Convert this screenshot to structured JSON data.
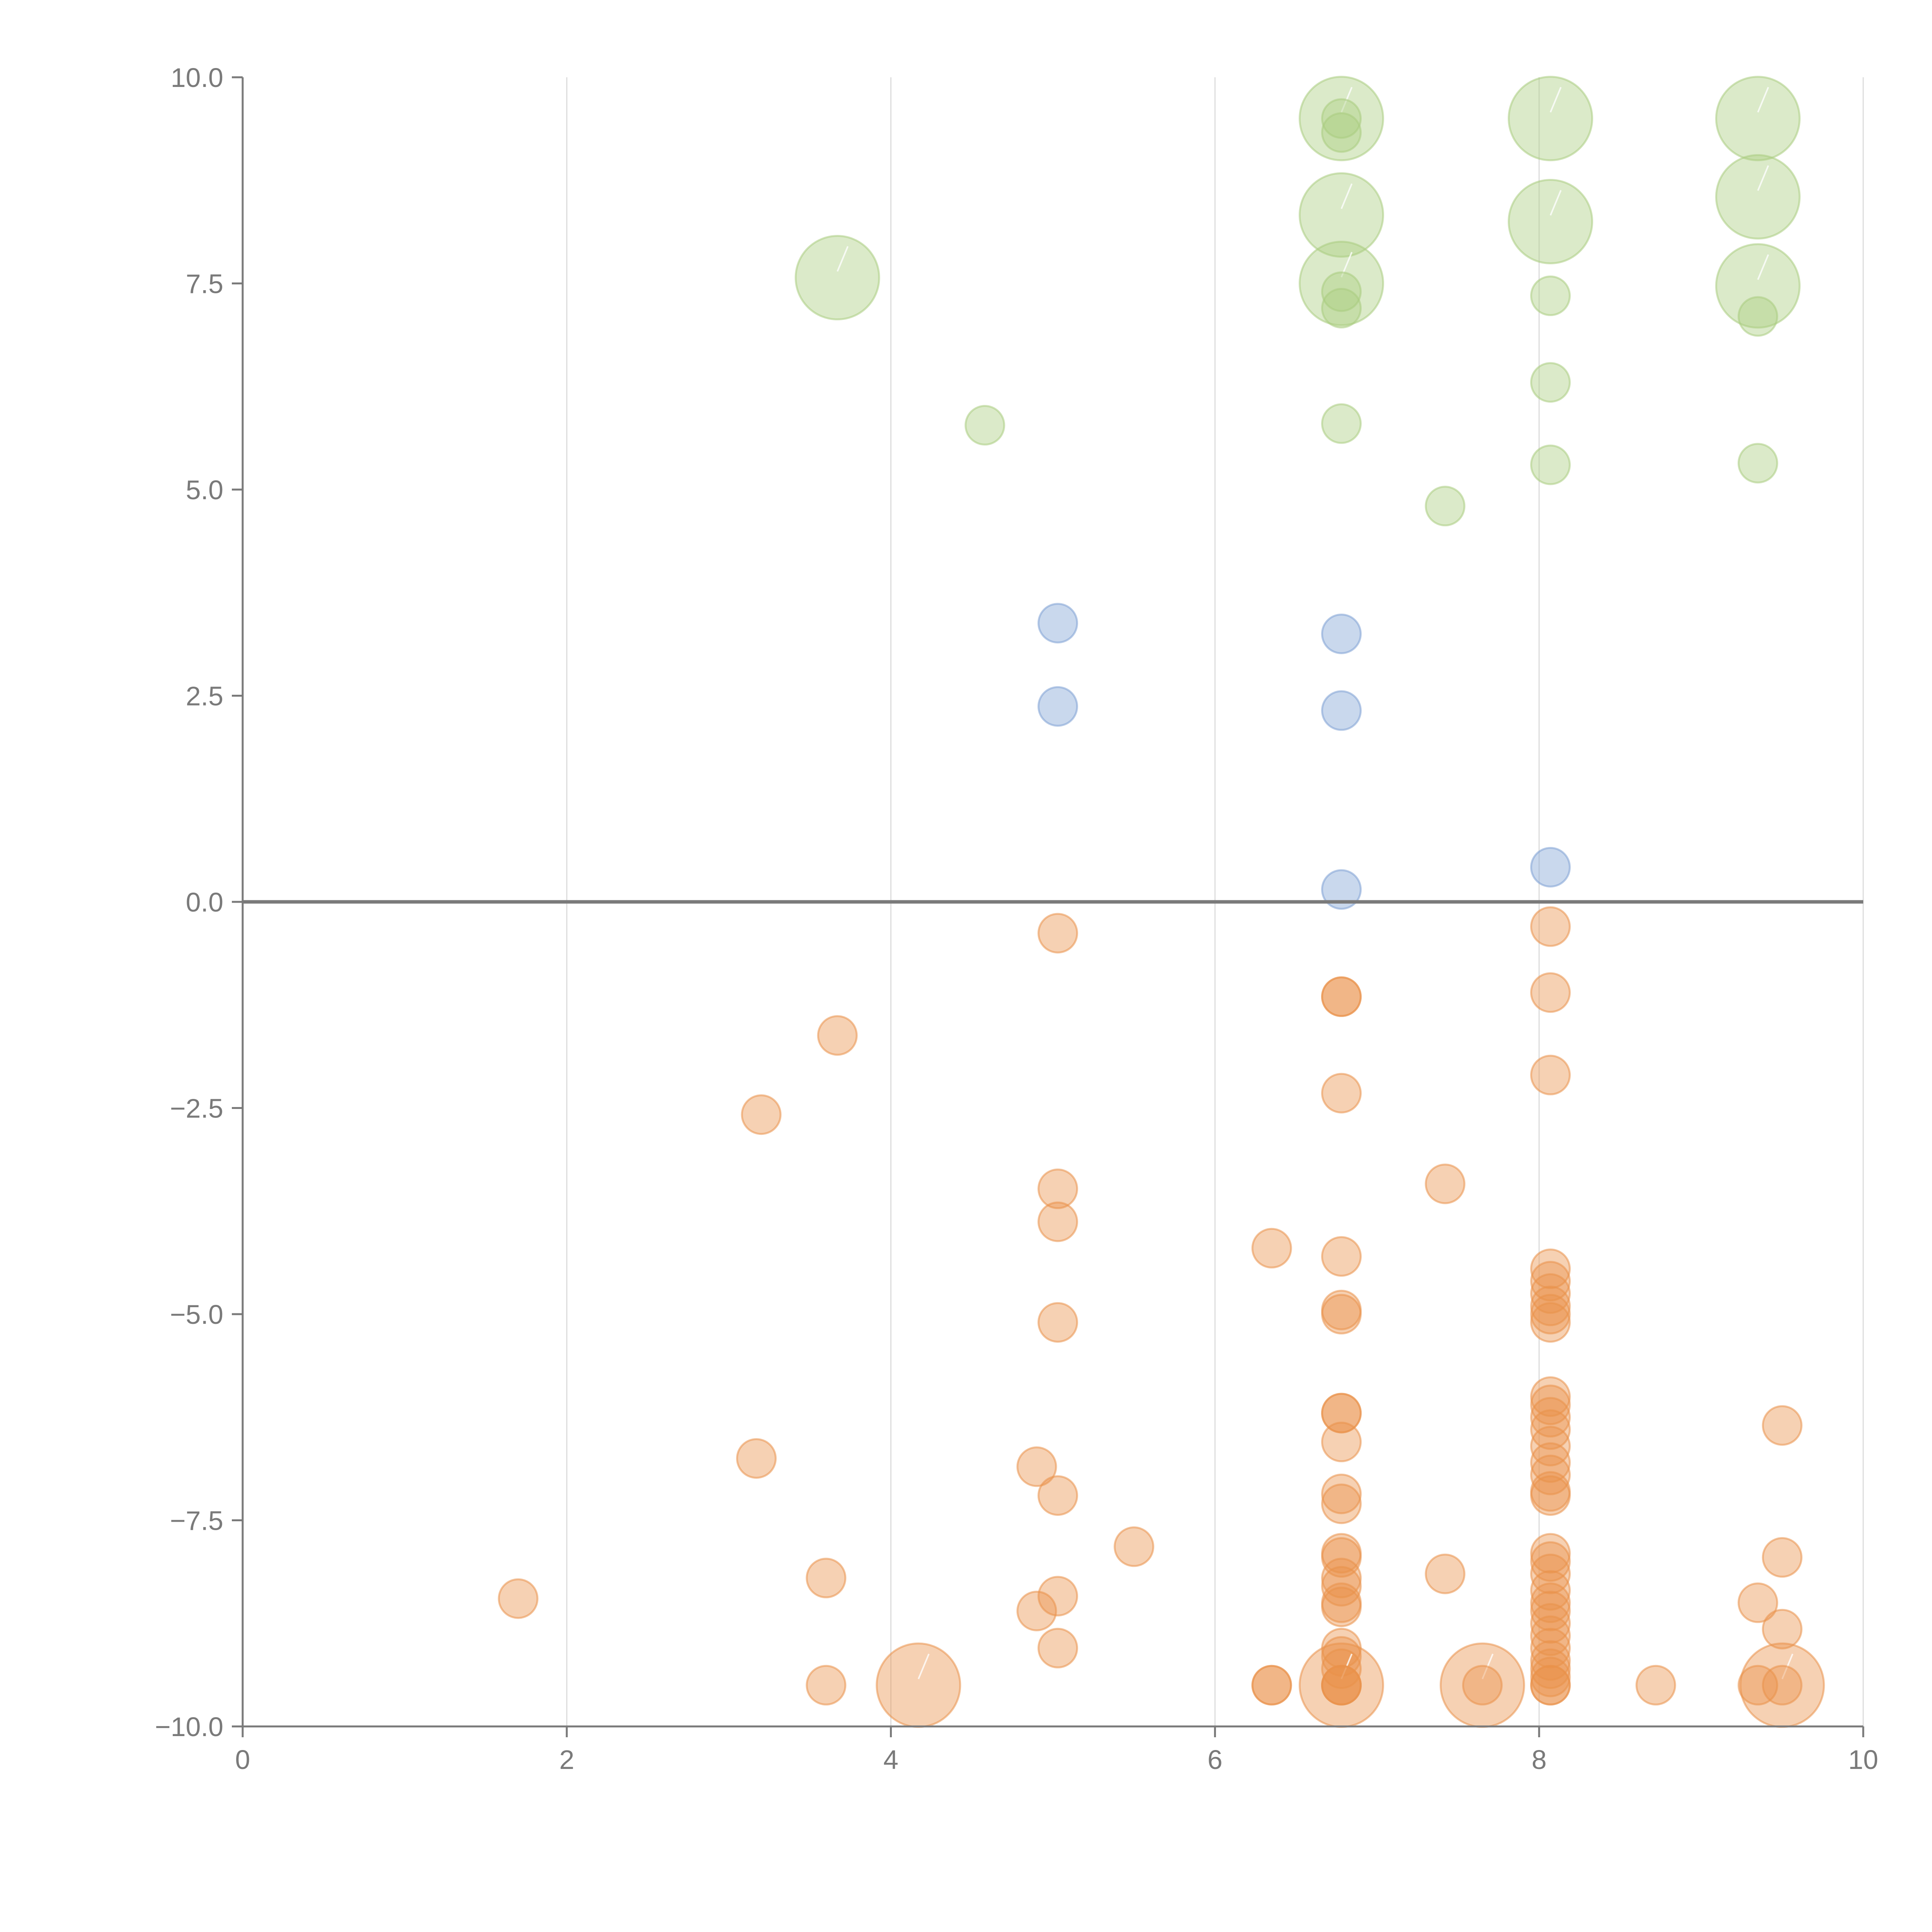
{
  "chart_data": {
    "type": "scatter",
    "title": "",
    "xlabel": "",
    "ylabel": "",
    "xlim": [
      0,
      10
    ],
    "ylim": [
      -10,
      10
    ],
    "grid": "vertical",
    "legend": "none",
    "x_ticks": [
      "0",
      "2",
      "4",
      "6",
      "8",
      "10"
    ],
    "y_ticks": [
      "10.0",
      "7.5",
      "5.0",
      "2.5",
      "0.0",
      "−2.5",
      "−5.0",
      "−7.5",
      "−10.0"
    ],
    "x_tick_values": [
      0,
      2,
      4,
      6,
      8,
      10
    ],
    "y_tick_values": [
      10,
      7.5,
      5,
      2.5,
      0,
      -2.5,
      -5,
      -7.5,
      -10
    ],
    "colors": {
      "green": "#a9cc7f",
      "blue": "#7ea1d4",
      "orange": "#e9924a",
      "axis": "#7a7a7a",
      "grid": "#dcdcdc"
    },
    "series": [
      {
        "color": "green",
        "points": [
          {
            "x": 3.67,
            "y": 7.57,
            "r": 2
          },
          {
            "x": 4.58,
            "y": 5.78,
            "r": 1
          },
          {
            "x": 6.78,
            "y": 9.5,
            "r": 2
          },
          {
            "x": 6.78,
            "y": 9.5,
            "r": 1
          },
          {
            "x": 6.78,
            "y": 9.33,
            "r": 1
          },
          {
            "x": 6.78,
            "y": 8.33,
            "r": 2
          },
          {
            "x": 6.78,
            "y": 7.5,
            "r": 2
          },
          {
            "x": 6.78,
            "y": 7.4,
            "r": 1
          },
          {
            "x": 6.78,
            "y": 7.2,
            "r": 1
          },
          {
            "x": 6.78,
            "y": 5.8,
            "r": 1
          },
          {
            "x": 7.42,
            "y": 4.8,
            "r": 1
          },
          {
            "x": 8.07,
            "y": 9.5,
            "r": 2
          },
          {
            "x": 8.07,
            "y": 8.25,
            "r": 2
          },
          {
            "x": 8.07,
            "y": 7.35,
            "r": 1
          },
          {
            "x": 8.07,
            "y": 6.3,
            "r": 1
          },
          {
            "x": 8.07,
            "y": 5.3,
            "r": 1
          },
          {
            "x": 9.35,
            "y": 9.5,
            "r": 2
          },
          {
            "x": 9.35,
            "y": 8.55,
            "r": 2
          },
          {
            "x": 9.35,
            "y": 7.47,
            "r": 2
          },
          {
            "x": 9.35,
            "y": 7.1,
            "r": 1
          },
          {
            "x": 9.35,
            "y": 5.32,
            "r": 1
          }
        ]
      },
      {
        "color": "blue",
        "points": [
          {
            "x": 5.03,
            "y": 3.38,
            "r": 1
          },
          {
            "x": 5.03,
            "y": 2.37,
            "r": 1
          },
          {
            "x": 6.78,
            "y": 3.25,
            "r": 1
          },
          {
            "x": 6.78,
            "y": 2.32,
            "r": 1
          },
          {
            "x": 6.78,
            "y": 0.15,
            "r": 1
          },
          {
            "x": 8.07,
            "y": 0.42,
            "r": 1
          }
        ]
      },
      {
        "color": "orange",
        "points": [
          {
            "x": 1.7,
            "y": -8.45,
            "r": 1
          },
          {
            "x": 3.17,
            "y": -6.75,
            "r": 1
          },
          {
            "x": 3.2,
            "y": -2.58,
            "r": 1
          },
          {
            "x": 3.6,
            "y": -8.2,
            "r": 1
          },
          {
            "x": 3.6,
            "y": -9.5,
            "r": 1
          },
          {
            "x": 3.67,
            "y": -1.62,
            "r": 1
          },
          {
            "x": 4.17,
            "y": -9.5,
            "r": 2
          },
          {
            "x": 4.9,
            "y": -6.85,
            "r": 1
          },
          {
            "x": 4.9,
            "y": -8.6,
            "r": 1
          },
          {
            "x": 5.03,
            "y": -0.38,
            "r": 1
          },
          {
            "x": 5.03,
            "y": -3.48,
            "r": 1
          },
          {
            "x": 5.03,
            "y": -3.88,
            "r": 1
          },
          {
            "x": 5.03,
            "y": -5.1,
            "r": 1
          },
          {
            "x": 5.03,
            "y": -7.2,
            "r": 1
          },
          {
            "x": 5.03,
            "y": -8.42,
            "r": 1
          },
          {
            "x": 5.03,
            "y": -9.05,
            "r": 1
          },
          {
            "x": 5.5,
            "y": -7.82,
            "r": 1
          },
          {
            "x": 6.35,
            "y": -4.2,
            "r": 1
          },
          {
            "x": 6.35,
            "y": -9.5,
            "r": 1
          },
          {
            "x": 6.35,
            "y": -9.5,
            "r": 1
          },
          {
            "x": 6.78,
            "y": -1.15,
            "r": 1
          },
          {
            "x": 6.78,
            "y": -1.15,
            "r": 1
          },
          {
            "x": 6.78,
            "y": -2.32,
            "r": 1
          },
          {
            "x": 6.78,
            "y": -4.3,
            "r": 1
          },
          {
            "x": 6.78,
            "y": -4.95,
            "r": 1
          },
          {
            "x": 6.78,
            "y": -5.0,
            "r": 1
          },
          {
            "x": 6.78,
            "y": -6.2,
            "r": 1
          },
          {
            "x": 6.78,
            "y": -6.2,
            "r": 1
          },
          {
            "x": 6.78,
            "y": -6.55,
            "r": 1
          },
          {
            "x": 6.78,
            "y": -7.18,
            "r": 1
          },
          {
            "x": 6.78,
            "y": -7.3,
            "r": 1
          },
          {
            "x": 6.78,
            "y": -7.9,
            "r": 1
          },
          {
            "x": 6.78,
            "y": -7.95,
            "r": 1
          },
          {
            "x": 6.78,
            "y": -8.2,
            "r": 1
          },
          {
            "x": 6.78,
            "y": -8.3,
            "r": 1
          },
          {
            "x": 6.78,
            "y": -8.5,
            "r": 1
          },
          {
            "x": 6.78,
            "y": -8.55,
            "r": 1
          },
          {
            "x": 6.78,
            "y": -9.05,
            "r": 1
          },
          {
            "x": 6.78,
            "y": -9.15,
            "r": 1
          },
          {
            "x": 6.78,
            "y": -9.3,
            "r": 1
          },
          {
            "x": 6.78,
            "y": -9.5,
            "r": 2
          },
          {
            "x": 6.78,
            "y": -9.5,
            "r": 1
          },
          {
            "x": 6.78,
            "y": -9.5,
            "r": 1
          },
          {
            "x": 6.78,
            "y": -9.5,
            "r": 1
          },
          {
            "x": 7.42,
            "y": -3.42,
            "r": 1
          },
          {
            "x": 7.42,
            "y": -8.15,
            "r": 1
          },
          {
            "x": 7.65,
            "y": -9.5,
            "r": 2
          },
          {
            "x": 7.65,
            "y": -9.5,
            "r": 1
          },
          {
            "x": 8.07,
            "y": -0.3,
            "r": 1
          },
          {
            "x": 8.07,
            "y": -1.1,
            "r": 1
          },
          {
            "x": 8.07,
            "y": -2.1,
            "r": 1
          },
          {
            "x": 8.07,
            "y": -4.45,
            "r": 1
          },
          {
            "x": 8.07,
            "y": -4.6,
            "r": 1
          },
          {
            "x": 8.07,
            "y": -4.75,
            "r": 1
          },
          {
            "x": 8.07,
            "y": -4.9,
            "r": 1
          },
          {
            "x": 8.07,
            "y": -5.0,
            "r": 1
          },
          {
            "x": 8.07,
            "y": -5.1,
            "r": 1
          },
          {
            "x": 8.07,
            "y": -6.0,
            "r": 1
          },
          {
            "x": 8.07,
            "y": -6.1,
            "r": 1
          },
          {
            "x": 8.07,
            "y": -6.25,
            "r": 1
          },
          {
            "x": 8.07,
            "y": -6.4,
            "r": 1
          },
          {
            "x": 8.07,
            "y": -6.6,
            "r": 1
          },
          {
            "x": 8.07,
            "y": -6.8,
            "r": 1
          },
          {
            "x": 8.07,
            "y": -6.95,
            "r": 1
          },
          {
            "x": 8.07,
            "y": -7.15,
            "r": 1
          },
          {
            "x": 8.07,
            "y": -7.2,
            "r": 1
          },
          {
            "x": 8.07,
            "y": -7.9,
            "r": 1
          },
          {
            "x": 8.07,
            "y": -8.0,
            "r": 1
          },
          {
            "x": 8.07,
            "y": -8.15,
            "r": 1
          },
          {
            "x": 8.07,
            "y": -8.35,
            "r": 1
          },
          {
            "x": 8.07,
            "y": -8.5,
            "r": 1
          },
          {
            "x": 8.07,
            "y": -8.6,
            "r": 1
          },
          {
            "x": 8.07,
            "y": -8.75,
            "r": 1
          },
          {
            "x": 8.07,
            "y": -8.9,
            "r": 1
          },
          {
            "x": 8.07,
            "y": -9.05,
            "r": 1
          },
          {
            "x": 8.07,
            "y": -9.2,
            "r": 1
          },
          {
            "x": 8.07,
            "y": -9.3,
            "r": 1
          },
          {
            "x": 8.07,
            "y": -9.4,
            "r": 1
          },
          {
            "x": 8.07,
            "y": -9.5,
            "r": 1
          },
          {
            "x": 8.07,
            "y": -9.5,
            "r": 1
          },
          {
            "x": 8.72,
            "y": -9.5,
            "r": 1
          },
          {
            "x": 9.35,
            "y": -8.5,
            "r": 1
          },
          {
            "x": 9.35,
            "y": -9.5,
            "r": 1
          },
          {
            "x": 9.5,
            "y": -6.35,
            "r": 1
          },
          {
            "x": 9.5,
            "y": -7.95,
            "r": 1
          },
          {
            "x": 9.5,
            "y": -8.82,
            "r": 1
          },
          {
            "x": 9.5,
            "y": -9.5,
            "r": 2
          },
          {
            "x": 9.5,
            "y": -9.5,
            "r": 1
          }
        ]
      }
    ]
  }
}
